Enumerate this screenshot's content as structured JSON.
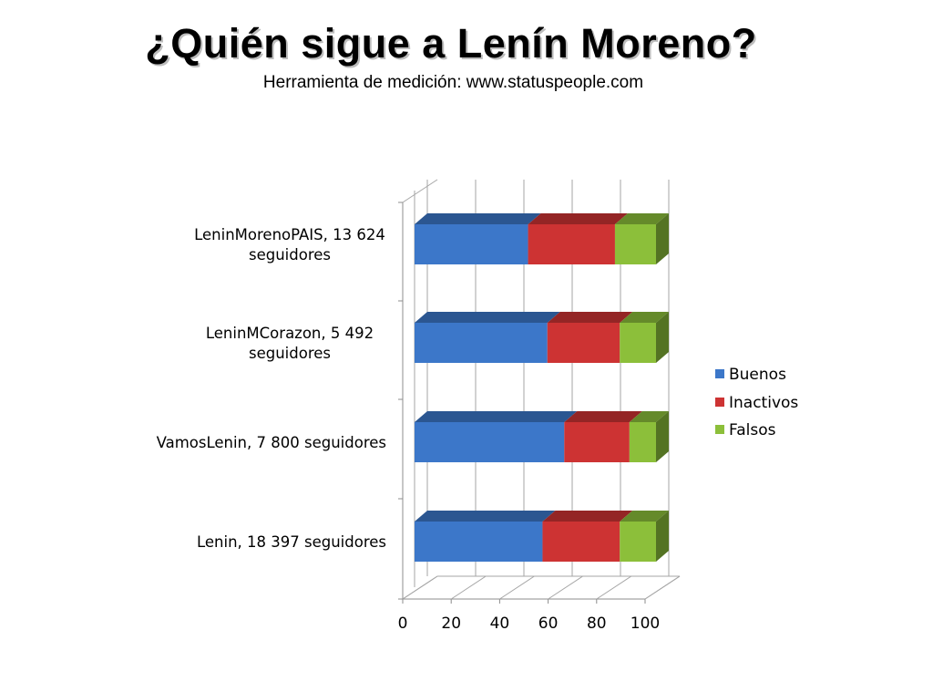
{
  "title": "¿Quién sigue a Lenín Moreno?",
  "subtitle": "Herramienta de medición: www.statuspeople.com",
  "colors": {
    "Buenos": "#3C77C9",
    "Inactivos": "#CD3333",
    "Falsos": "#8CBF3A"
  },
  "chart_data": {
    "type": "bar",
    "orientation": "horizontal",
    "stacked": true,
    "style": "3d",
    "categories": [
      "LeninMorenoPAIS, 13 624 seguidores",
      "LeninMCorazon, 5 492 seguidores",
      "VamosLenin, 7 800 seguidores",
      "Lenin, 18 397 seguidores"
    ],
    "series": [
      {
        "name": "Buenos",
        "values": [
          47,
          55,
          62,
          53
        ]
      },
      {
        "name": "Inactivos",
        "values": [
          36,
          30,
          27,
          32
        ]
      },
      {
        "name": "Falsos",
        "values": [
          17,
          15,
          11,
          15
        ]
      }
    ],
    "xlim": [
      0,
      100
    ],
    "xticks": [
      "0",
      "20",
      "40",
      "60",
      "80",
      "100"
    ],
    "grid": true,
    "legend_position": "right"
  }
}
